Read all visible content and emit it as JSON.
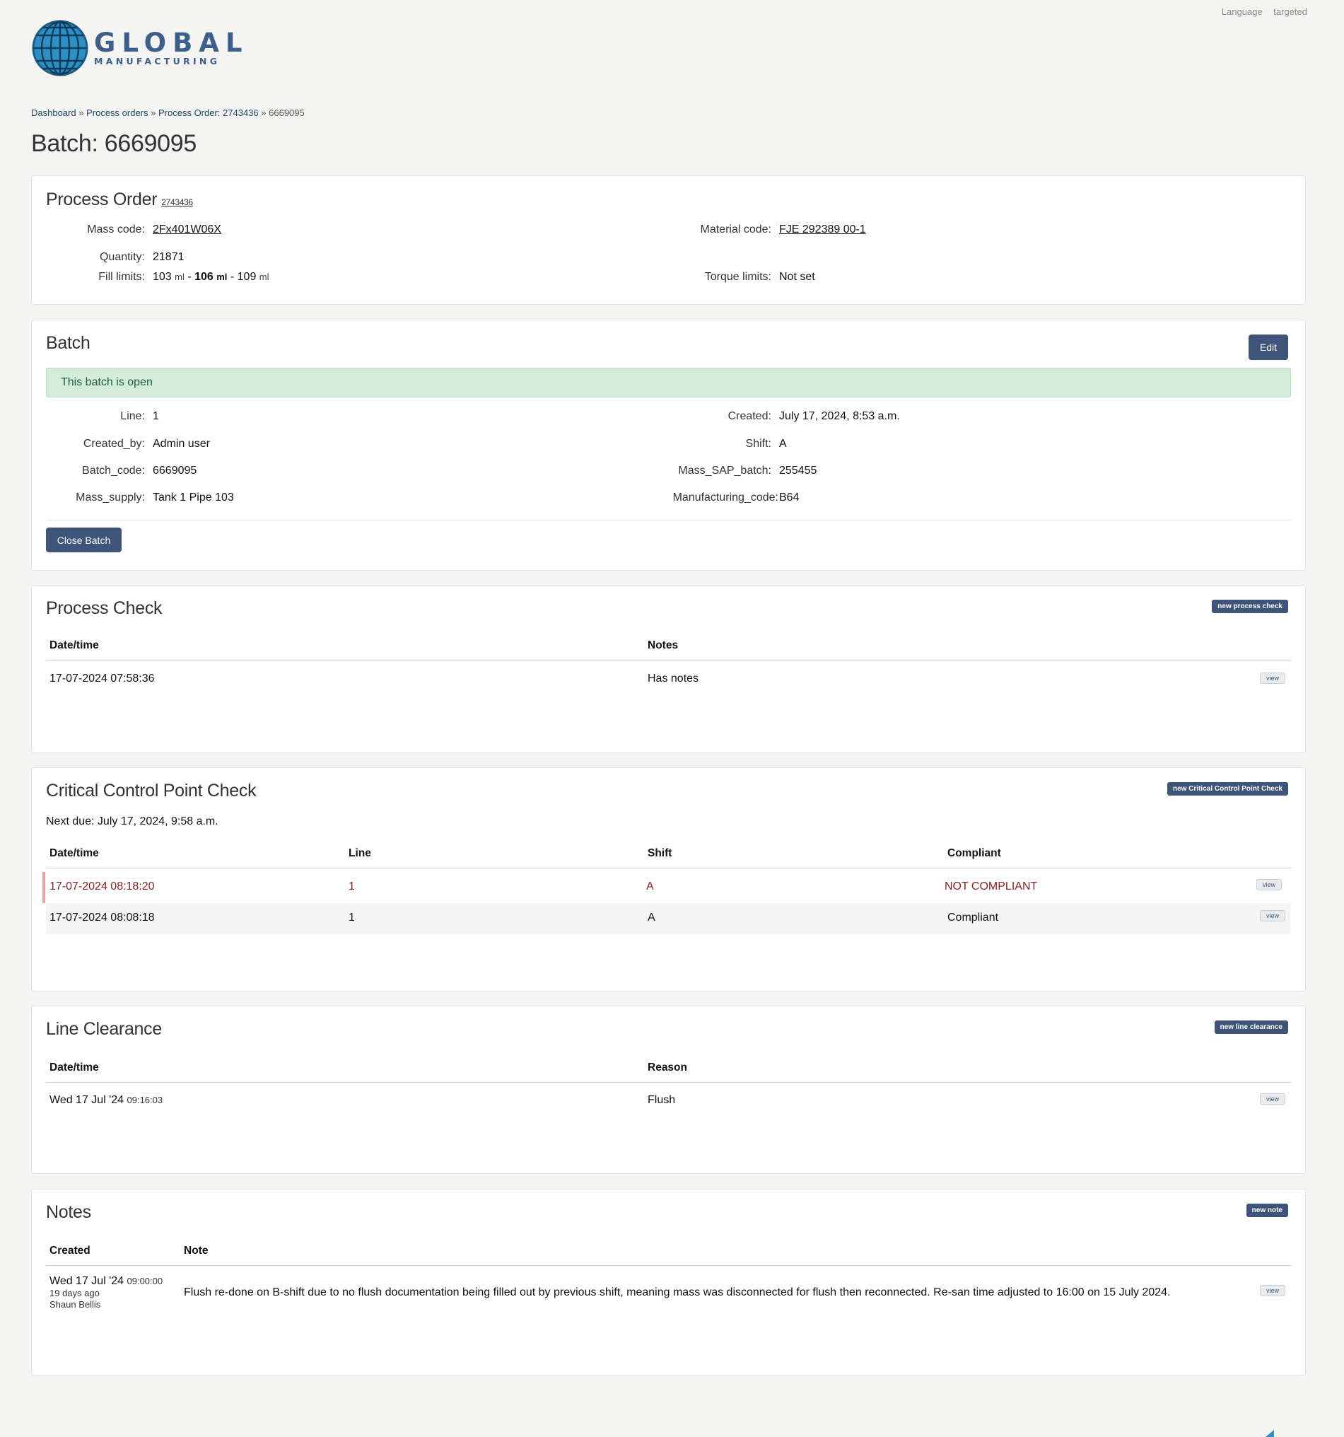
{
  "topbar": {
    "language": "Language",
    "targeted": "targeted"
  },
  "logo": {
    "big": "GLOBAL",
    "small": "MANUFACTURING"
  },
  "breadcrumb": {
    "items": [
      "Dashboard",
      "Process orders",
      "Process Order: 2743436"
    ],
    "separator": "»",
    "current": "6669095"
  },
  "page_title": "Batch: 6669095",
  "process_order": {
    "title": "Process Order",
    "number": "2743436",
    "mass_code_label": "Mass code:",
    "mass_code": "2Fx401W06X",
    "material_code_label": "Material code:",
    "material_code": "FJE 292389 00-1",
    "quantity_label": "Quantity:",
    "quantity": "21871",
    "fill_limits_label": "Fill limits:",
    "fill_min": "103",
    "fill_target": "106",
    "fill_max": "109",
    "fill_unit": "ml",
    "torque_label": "Torque limits:",
    "torque": "Not set"
  },
  "batch": {
    "title": "Batch",
    "edit_label": "Edit",
    "status": "This batch is open",
    "line_label": "Line:",
    "line": "1",
    "created_label": "Created:",
    "created": "July 17, 2024, 8:53 a.m.",
    "created_by_label": "Created_by:",
    "created_by": "Admin user",
    "shift_label": "Shift:",
    "shift": "A",
    "batch_code_label": "Batch_code:",
    "batch_code": "6669095",
    "mass_sap_label": "Mass_SAP_batch:",
    "mass_sap": "255455",
    "mass_supply_label": "Mass_supply:",
    "mass_supply": "Tank 1 Pipe 103",
    "mfg_code_label": "Manufacturing_code:",
    "mfg_code": "B64",
    "close_label": "Close Batch"
  },
  "process_check": {
    "title": "Process Check",
    "new_label": "new process check",
    "headers": [
      "Date/time",
      "Notes"
    ],
    "rows": [
      {
        "datetime": "17-07-2024 07:58:36",
        "notes": "Has notes",
        "view": "view"
      }
    ]
  },
  "ccp": {
    "title": "Critical Control Point Check",
    "new_label": "new Critical Control Point Check",
    "next_due": "Next due: July 17, 2024, 9:58 a.m.",
    "headers": [
      "Date/time",
      "Line",
      "Shift",
      "Compliant"
    ],
    "rows": [
      {
        "datetime": "17-07-2024 08:18:20",
        "line": "1",
        "shift": "A",
        "compliant": "NOT COMPLIANT",
        "view": "view"
      },
      {
        "datetime": "17-07-2024 08:08:18",
        "line": "1",
        "shift": "A",
        "compliant": "Compliant",
        "view": "view"
      }
    ]
  },
  "line_clearance": {
    "title": "Line Clearance",
    "new_label": "new line clearance",
    "headers": [
      "Date/time",
      "Reason"
    ],
    "rows": [
      {
        "date": "Wed 17 Jul '24",
        "time": "09:16:03",
        "reason": "Flush",
        "view": "view"
      }
    ]
  },
  "notes": {
    "title": "Notes",
    "new_label": "new note",
    "headers": [
      "Created",
      "Note"
    ],
    "rows": [
      {
        "date": "Wed 17 Jul '24",
        "time": "09:00:00",
        "ago": "19 days ago",
        "author": "Shaun Bellis",
        "note": "Flush re-done on B-shift due to no flush documentation being filled out by previous shift, meaning mass was disconnected for flush then reconnected. Re-san time adjusted to 16:00 on 15 July 2024.",
        "view": "view"
      }
    ]
  },
  "colors": {
    "primary": "#3e5479",
    "success_bg": "#d4eddb",
    "danger_text": "#8c1d1d",
    "globe": "#2e8fc4"
  }
}
